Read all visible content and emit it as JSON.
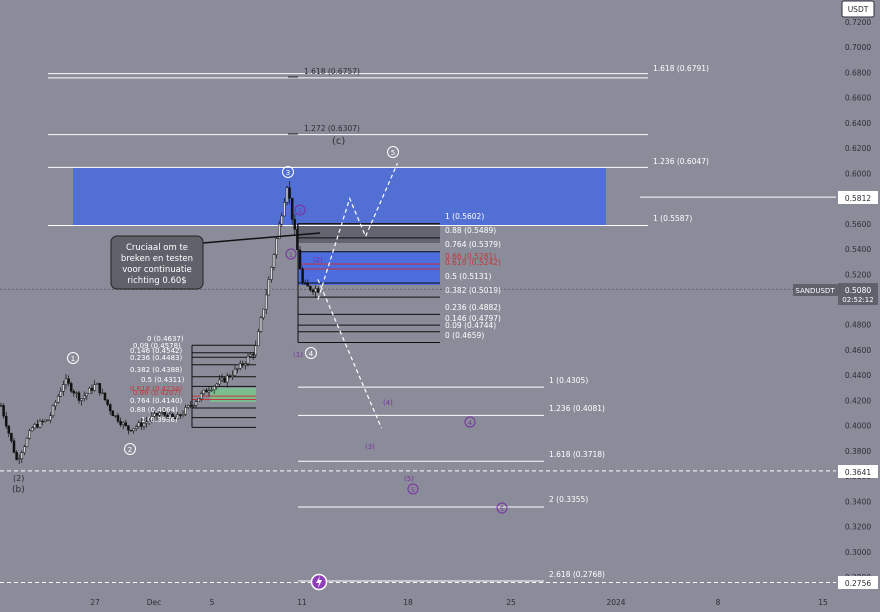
{
  "colors": {
    "bg": "#8a8d99",
    "zone_blue": "#4f6fd6",
    "zone_blue_small": "#4a6ae0",
    "zone_grey": "#5b5e67",
    "zone_green": "#7ac28e",
    "candle": "#111111",
    "white": "#ffffff",
    "fib_red": "#c0393b",
    "purple": "#7a2fa0",
    "label_dark": "#2b2e36",
    "annotation_fill": "#5f626b"
  },
  "price_axis": {
    "currency": "USDT",
    "ticks": [
      "0.7200",
      "0.7000",
      "0.6800",
      "0.6600",
      "0.6400",
      "0.6200",
      "0.6000",
      "0.5800",
      "0.5600",
      "0.5400",
      "0.5200",
      "0.5000",
      "0.4800",
      "0.4600",
      "0.4400",
      "0.4200",
      "0.4000",
      "0.3800",
      "0.3600",
      "0.3400",
      "0.3200",
      "0.3000",
      "0.2800"
    ],
    "badges": [
      {
        "text": "0.5812",
        "style": "light",
        "price": 0.5812
      },
      {
        "text": "0.3641",
        "style": "light",
        "price": 0.3641
      },
      {
        "text": "0.2756",
        "style": "light",
        "price": 0.2756
      }
    ],
    "current": {
      "symbol": "SANDUSDT",
      "price": "0.5080",
      "countdown": "02:52:12",
      "value": 0.508
    }
  },
  "time_axis": {
    "labels": [
      "27",
      "Dec",
      "5",
      "11",
      "18",
      "25",
      "2024",
      "8",
      "15"
    ]
  },
  "annotation": {
    "lines": [
      "Cruciaal om te",
      "breken en testen",
      "voor continuatie",
      "richting 0.60$"
    ]
  },
  "top_levels": [
    {
      "text": "1.618 (0.6757)",
      "price": 0.6757
    },
    {
      "text": "1.272 (0.6307)",
      "price": 0.6307
    }
  ],
  "right_fib": [
    {
      "text": "1.618 (0.6791)",
      "price": 0.6791
    },
    {
      "text": "1.236 (0.6047)",
      "price": 0.6047
    },
    {
      "text": "1 (0.5587)",
      "price": 0.5587
    }
  ],
  "retracement_fib": [
    {
      "text": "1 (0.5602)",
      "price": 0.5602,
      "color": "white"
    },
    {
      "text": "0.88 (0.5489)",
      "price": 0.5489,
      "color": "white"
    },
    {
      "text": "0.764 (0.5379)",
      "price": 0.5379,
      "color": "white"
    },
    {
      "text": "0.66 (0.5281)",
      "price": 0.5281,
      "color": "red"
    },
    {
      "text": "0.618 (0.5242)",
      "price": 0.5242,
      "color": "red"
    },
    {
      "text": "0.5 (0.5131)",
      "price": 0.5131,
      "color": "white"
    },
    {
      "text": "0.382 (0.5019)",
      "price": 0.5019,
      "color": "white"
    },
    {
      "text": "0.236 (0.4882)",
      "price": 0.4882,
      "color": "white"
    },
    {
      "text": "0.146 (0.4797)",
      "price": 0.4797,
      "color": "white"
    },
    {
      "text": "0.09 (0.4744)",
      "price": 0.4744,
      "color": "white"
    },
    {
      "text": "0 (0.4659)",
      "price": 0.4659,
      "color": "white"
    }
  ],
  "extension_fib": [
    {
      "text": "1 (0.4305)",
      "price": 0.4305
    },
    {
      "text": "1.236 (0.4081)",
      "price": 0.4081
    },
    {
      "text": "1.618 (0.3718)",
      "price": 0.3718
    },
    {
      "text": "2 (0.3355)",
      "price": 0.3355
    },
    {
      "text": "2.618 (0.2768)",
      "price": 0.2768
    }
  ],
  "left_fib": [
    {
      "text": "0 (0.4637)",
      "price": 0.4637,
      "color": "white"
    },
    {
      "text": "0.09 (0.4578)",
      "price": 0.4578,
      "color": "white"
    },
    {
      "text": "0.146 (0.4542)",
      "price": 0.4542,
      "color": "white"
    },
    {
      "text": "0.236 (0.4483)",
      "price": 0.4483,
      "color": "white"
    },
    {
      "text": "0.382 (0.4388)",
      "price": 0.4388,
      "color": "white"
    },
    {
      "text": "0.5 (0.4311)",
      "price": 0.4311,
      "color": "white"
    },
    {
      "text": "0.618 (0.4234)",
      "price": 0.4234,
      "color": "red"
    },
    {
      "text": "0.66 (0.4207)",
      "price": 0.4207,
      "color": "red"
    },
    {
      "text": "0.764 (0.4140)",
      "price": 0.414,
      "color": "white"
    },
    {
      "text": "0.88 (0.4064)",
      "price": 0.4064,
      "color": "white"
    },
    {
      "text": "1 (0.3986)",
      "price": 0.3986,
      "color": "white"
    }
  ],
  "wave_labels": [
    {
      "text": "(c)",
      "color": "dark"
    },
    {
      "text": "(b)",
      "color": "dark"
    },
    {
      "text": "(2)",
      "color": "dark"
    },
    {
      "text": "(2)",
      "color": "purple"
    },
    {
      "text": "(1)",
      "color": "purple"
    },
    {
      "text": "(3)",
      "color": "purple"
    },
    {
      "text": "(4)",
      "color": "purple"
    },
    {
      "text": "(5)",
      "color": "purple"
    }
  ],
  "wave_circles": [
    {
      "text": "1",
      "style": "white"
    },
    {
      "text": "2",
      "style": "white"
    },
    {
      "text": "3",
      "style": "white"
    },
    {
      "text": "4",
      "style": "white"
    },
    {
      "text": "5",
      "style": "white"
    },
    {
      "text": "2",
      "style": "purple"
    },
    {
      "text": "1",
      "style": "purple"
    },
    {
      "text": "4",
      "style": "purple"
    },
    {
      "text": "5",
      "style": "purple"
    },
    {
      "text": "5",
      "style": "purple"
    }
  ],
  "chart_data": {
    "type": "candlestick",
    "symbol": "SANDUSDT",
    "quote_currency": "USDT",
    "ylim": [
      0.268,
      0.728
    ],
    "y_ticks": [
      0.72,
      0.7,
      0.68,
      0.66,
      0.64,
      0.62,
      0.6,
      0.58,
      0.56,
      0.54,
      0.52,
      0.5,
      0.48,
      0.46,
      0.44,
      0.42,
      0.4,
      0.38,
      0.36,
      0.34,
      0.32,
      0.3,
      0.28
    ],
    "x_tick_labels": [
      "27",
      "Dec",
      "5",
      "11",
      "18",
      "25",
      "2024",
      "8",
      "15"
    ],
    "grid": false,
    "price_path": [
      {
        "date": "11-22",
        "price": 0.416
      },
      {
        "date": "11-23",
        "price": 0.372
      },
      {
        "date": "11-24",
        "price": 0.399
      },
      {
        "date": "11-25",
        "price": 0.405
      },
      {
        "date": "11-26",
        "price": 0.436
      },
      {
        "date": "11-27",
        "price": 0.421
      },
      {
        "date": "11-28",
        "price": 0.433
      },
      {
        "date": "11-29",
        "price": 0.41
      },
      {
        "date": "11-30",
        "price": 0.397
      },
      {
        "date": "12-01",
        "price": 0.402
      },
      {
        "date": "12-02",
        "price": 0.41
      },
      {
        "date": "12-03",
        "price": 0.405
      },
      {
        "date": "12-04",
        "price": 0.417
      },
      {
        "date": "12-05",
        "price": 0.429
      },
      {
        "date": "12-06",
        "price": 0.436
      },
      {
        "date": "12-07",
        "price": 0.446
      },
      {
        "date": "12-08",
        "price": 0.46
      },
      {
        "date": "12-09",
        "price": 0.525
      },
      {
        "date": "12-10",
        "price": 0.592
      },
      {
        "date": "12-11",
        "price": 0.51
      },
      {
        "date": "12-12",
        "price": 0.508
      }
    ],
    "projected_path": [
      {
        "date": "12-12",
        "price": 0.5
      },
      {
        "date": "12-14",
        "price": 0.58
      },
      {
        "date": "12-15",
        "price": 0.55
      },
      {
        "date": "12-17",
        "price": 0.608
      }
    ],
    "alternate_path": [
      {
        "date": "12-12",
        "price": 0.516
      },
      {
        "date": "12-16",
        "price": 0.398
      }
    ],
    "current_price": 0.508,
    "horizontal_levels": [
      0.5812,
      0.3641,
      0.2756
    ]
  }
}
